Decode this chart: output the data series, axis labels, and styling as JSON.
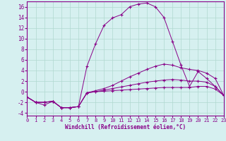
{
  "xlabel": "Windchill (Refroidissement éolien,°C)",
  "xlim": [
    0,
    23
  ],
  "ylim": [
    -4.5,
    17
  ],
  "xticks": [
    0,
    1,
    2,
    3,
    4,
    5,
    6,
    7,
    8,
    9,
    10,
    11,
    12,
    13,
    14,
    15,
    16,
    17,
    18,
    19,
    20,
    21,
    22,
    23
  ],
  "yticks": [
    -4,
    -2,
    0,
    2,
    4,
    6,
    8,
    10,
    12,
    14,
    16
  ],
  "bg_color": "#d6f0f0",
  "line_color": "#880088",
  "grid_color": "#b0d8d0",
  "line1_x": [
    0,
    1,
    2,
    3,
    4,
    5,
    6,
    7,
    8,
    9,
    10,
    11,
    12,
    13,
    14,
    15,
    16,
    17,
    18,
    19,
    20,
    21,
    22,
    23
  ],
  "line1_y": [
    -1.0,
    -2.0,
    -2.5,
    -1.8,
    -3.0,
    -3.0,
    -2.8,
    4.8,
    9.0,
    12.5,
    13.9,
    14.5,
    16.0,
    16.5,
    16.7,
    16.0,
    14.0,
    9.5,
    5.0,
    1.0,
    3.8,
    2.5,
    1.0,
    -0.7
  ],
  "line2_x": [
    0,
    1,
    2,
    3,
    4,
    5,
    6,
    7,
    8,
    9,
    10,
    11,
    12,
    13,
    14,
    15,
    16,
    17,
    18,
    19,
    20,
    21,
    22,
    23
  ],
  "line2_y": [
    -1.0,
    -2.0,
    -2.0,
    -1.8,
    -3.0,
    -3.0,
    -2.8,
    -0.2,
    0.2,
    0.6,
    1.2,
    2.0,
    2.8,
    3.5,
    4.2,
    4.8,
    5.2,
    5.0,
    4.5,
    4.2,
    4.0,
    3.5,
    2.5,
    -0.7
  ],
  "line3_x": [
    0,
    1,
    2,
    3,
    4,
    5,
    6,
    7,
    8,
    9,
    10,
    11,
    12,
    13,
    14,
    15,
    16,
    17,
    18,
    19,
    20,
    21,
    22,
    23
  ],
  "line3_y": [
    -1.0,
    -2.0,
    -2.0,
    -1.8,
    -3.0,
    -3.0,
    -2.8,
    -0.2,
    0.0,
    0.3,
    0.6,
    0.9,
    1.2,
    1.5,
    1.8,
    2.0,
    2.2,
    2.3,
    2.2,
    2.0,
    2.0,
    1.8,
    1.0,
    -0.7
  ],
  "line4_x": [
    0,
    1,
    2,
    3,
    4,
    5,
    6,
    7,
    8,
    9,
    10,
    11,
    12,
    13,
    14,
    15,
    16,
    17,
    18,
    19,
    20,
    21,
    22,
    23
  ],
  "line4_y": [
    -1.0,
    -2.0,
    -2.0,
    -1.8,
    -3.0,
    -3.0,
    -2.8,
    -0.2,
    0.0,
    0.1,
    0.2,
    0.3,
    0.4,
    0.5,
    0.6,
    0.7,
    0.8,
    0.8,
    0.8,
    0.8,
    1.0,
    1.0,
    0.5,
    -0.7
  ]
}
